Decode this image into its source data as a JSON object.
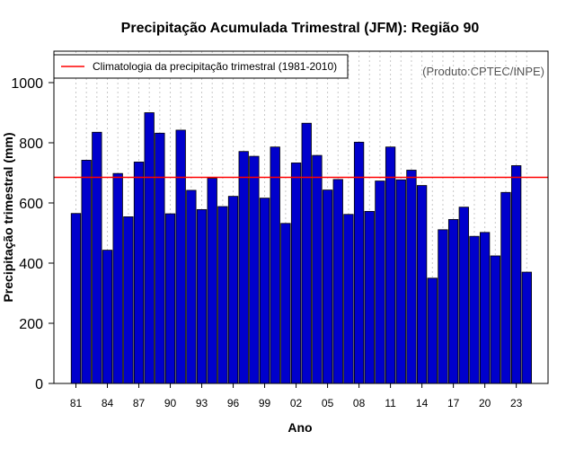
{
  "chart_data": {
    "type": "bar",
    "title": "Precipitação Acumulada Trimestral (JFM): Região 90",
    "xlabel": "Ano",
    "ylabel": "Precipitação trimestral (mm)",
    "ylim": [
      0,
      1100
    ],
    "yticks": [
      0,
      200,
      400,
      600,
      800,
      1000
    ],
    "x_tick_labels": [
      "81",
      "84",
      "87",
      "90",
      "93",
      "96",
      "99",
      "02",
      "05",
      "08",
      "11",
      "14",
      "17",
      "20",
      "23"
    ],
    "categories": [
      "1981",
      "1982",
      "1983",
      "1984",
      "1985",
      "1986",
      "1987",
      "1988",
      "1989",
      "1990",
      "1991",
      "1992",
      "1993",
      "1994",
      "1995",
      "1996",
      "1997",
      "1998",
      "1999",
      "2000",
      "2001",
      "2002",
      "2003",
      "2004",
      "2005",
      "2006",
      "2007",
      "2008",
      "2009",
      "2010",
      "2011",
      "2012",
      "2013",
      "2014",
      "2015",
      "2016",
      "2017",
      "2018",
      "2019",
      "2020",
      "2021",
      "2022",
      "2023",
      "2024"
    ],
    "values": [
      565,
      742,
      835,
      443,
      698,
      554,
      736,
      900,
      832,
      564,
      842,
      642,
      578,
      682,
      588,
      622,
      771,
      755,
      616,
      786,
      532,
      733,
      865,
      758,
      643,
      678,
      562,
      802,
      572,
      673,
      786,
      677,
      709,
      658,
      350,
      511,
      545,
      586,
      489,
      502,
      424,
      635,
      724,
      370
    ],
    "climatology": 685,
    "grid": "vertical dotted",
    "legend": {
      "position": "top-left",
      "entries": [
        "Climatologia da precipitação trimestral (1981-2010)"
      ]
    },
    "annotation": "(Produto:CPTEC/INPE)",
    "colors": {
      "bar_fill": "#0000cc",
      "bar_stroke": "#000000",
      "climatology_line": "#ff0000",
      "grid": "#c8c8c8"
    }
  }
}
